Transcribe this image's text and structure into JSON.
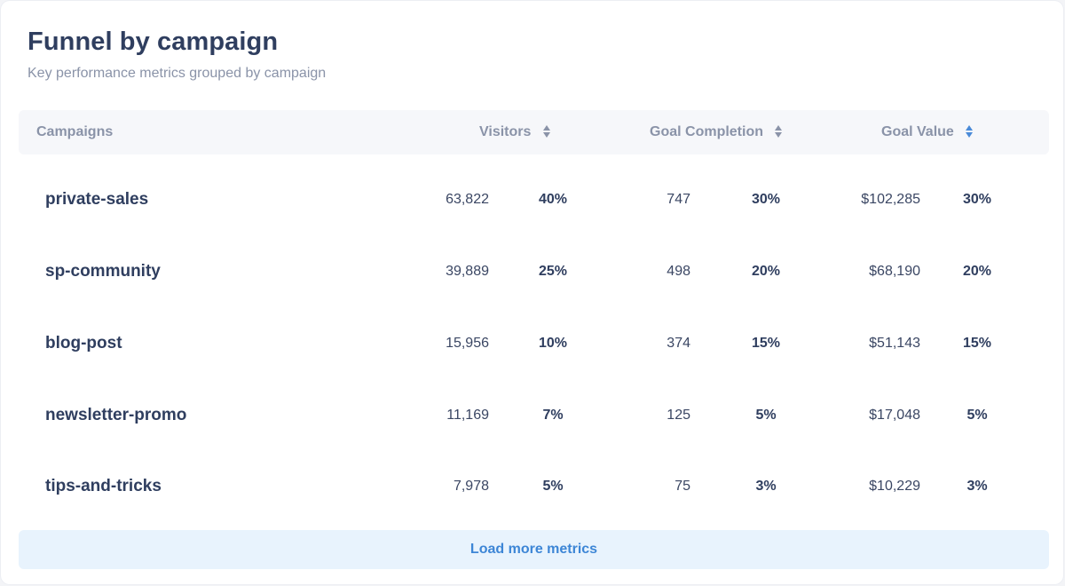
{
  "header": {
    "title": "Funnel by campaign",
    "subtitle": "Key performance metrics grouped by campaign"
  },
  "table": {
    "columns": {
      "campaigns": "Campaigns",
      "visitors": "Visitors",
      "goal_completion": "Goal Completion",
      "goal_value": "Goal Value"
    },
    "sort_icons": {
      "visitors": "sort-icon",
      "goal_completion": "sort-icon",
      "goal_value": "sort-icon-active"
    },
    "accent_color": "#4a8ad8",
    "rows": [
      {
        "name": "private-sales",
        "visitors": "63,822",
        "visitors_pct": "40%",
        "goals": "747",
        "goals_pct": "30%",
        "value": "$102,285",
        "value_pct": "30%"
      },
      {
        "name": "sp-community",
        "visitors": "39,889",
        "visitors_pct": "25%",
        "goals": "498",
        "goals_pct": "20%",
        "value": "$68,190",
        "value_pct": "20%"
      },
      {
        "name": "blog-post",
        "visitors": "15,956",
        "visitors_pct": "10%",
        "goals": "374",
        "goals_pct": "15%",
        "value": "$51,143",
        "value_pct": "15%"
      },
      {
        "name": "newsletter-promo",
        "visitors": "11,169",
        "visitors_pct": "7%",
        "goals": "125",
        "goals_pct": "5%",
        "value": "$17,048",
        "value_pct": "5%"
      },
      {
        "name": "tips-and-tricks",
        "visitors": "7,978",
        "visitors_pct": "5%",
        "goals": "75",
        "goals_pct": "3%",
        "value": "$10,229",
        "value_pct": "3%"
      }
    ]
  },
  "footer": {
    "load_more_label": "Load more metrics"
  }
}
